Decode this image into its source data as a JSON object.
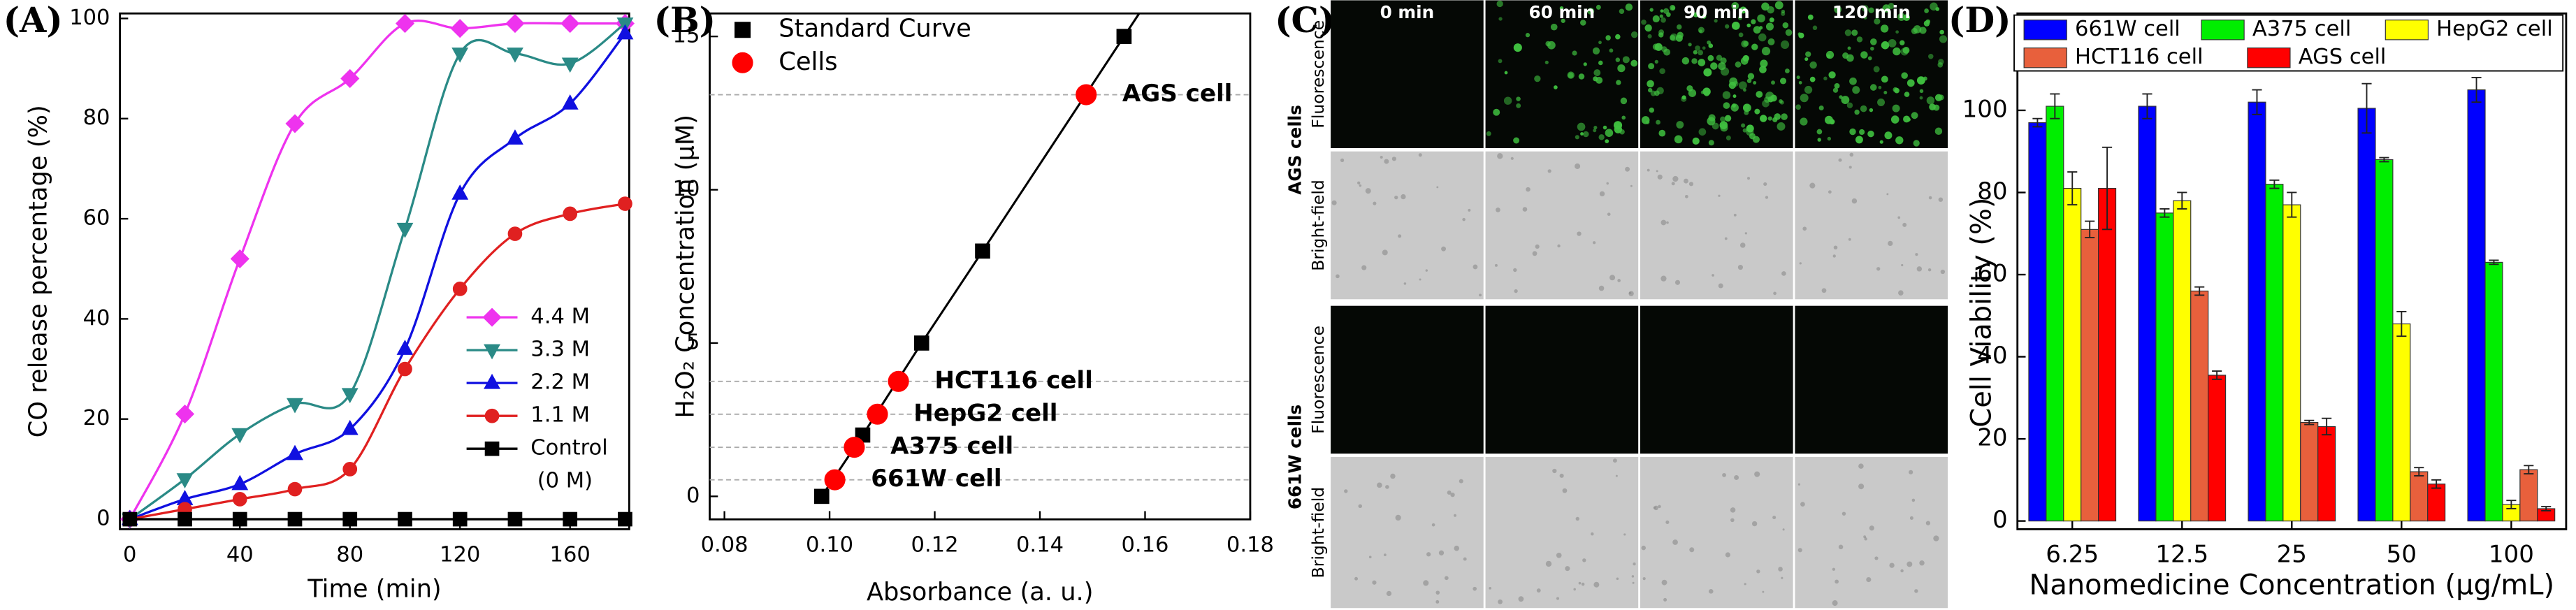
{
  "chart_data": [
    {
      "type": "line",
      "panel_label": "(A)",
      "x_label": "Time (min)",
      "y_label": "CO release percentage (%)",
      "x": [
        0,
        20,
        40,
        60,
        80,
        100,
        120,
        140,
        160,
        180
      ],
      "series": [
        {
          "name": "4.4 M",
          "color": "#ee33ee",
          "marker": "diamond",
          "values": [
            0,
            21,
            52,
            79,
            88,
            99,
            98,
            99,
            99,
            99
          ]
        },
        {
          "name": "3.3 M",
          "color": "#2a8a86",
          "marker": "triangle-down",
          "values": [
            0,
            8,
            17,
            23,
            25,
            58,
            93,
            93,
            91,
            99
          ]
        },
        {
          "name": "2.2 M",
          "color": "#1010e0",
          "marker": "triangle",
          "values": [
            0,
            4,
            7,
            13,
            18,
            34,
            65,
            76,
            83,
            97
          ]
        },
        {
          "name": "1.1 M",
          "color": "#e02020",
          "marker": "circle",
          "values": [
            0,
            2,
            4,
            6,
            10,
            30,
            46,
            57,
            61,
            63
          ]
        },
        {
          "name": "Control",
          "legend_note": "(0 M)",
          "color": "#000000",
          "marker": "square",
          "values": [
            0,
            0,
            0,
            0,
            0,
            0,
            0,
            0,
            0,
            0
          ]
        }
      ],
      "xlim": [
        -3.6,
        181.5
      ],
      "xticks": [
        0,
        40,
        80,
        120,
        160
      ],
      "ylim": [
        -2,
        101
      ],
      "yticks": [
        0,
        20,
        40,
        60,
        80,
        100
      ],
      "smooth": true,
      "legend": "lower right"
    },
    {
      "type": "scatter",
      "panel_label": "(B)",
      "x_label": "Absorbance (a. u.)",
      "y_label": "H₂O₂ Concentration (μM)",
      "series": [
        {
          "name": "Standard Curve",
          "color": "#000000",
          "marker": "square",
          "line": true,
          "x": [
            0.0985,
            0.1063,
            0.1175,
            0.1291,
            0.156
          ],
          "values": [
            0,
            2,
            5,
            8,
            15
          ]
        },
        {
          "name": "Cells",
          "color": "#ff0000",
          "marker": "circle",
          "guide_lines": true,
          "x": [
            0.101,
            0.1047,
            0.1091,
            0.1131,
            0.1488
          ],
          "values": [
            0.54,
            1.6,
            2.68,
            3.75,
            13.1
          ],
          "point_labels": [
            "661W cell",
            "A375 cell",
            "HepG2 cell",
            "HCT116 cell",
            "AGS cell"
          ]
        }
      ],
      "xlim": [
        0.0772,
        0.18
      ],
      "xticks": [
        0.08,
        {
          "value": 0.1,
          "label": "0.10"
        },
        0.12,
        0.14,
        0.16,
        0.18
      ],
      "ylim": [
        -0.75,
        15.75
      ],
      "yticks": [
        0,
        5,
        10,
        15
      ],
      "legend": "upper left"
    },
    {
      "type": "bar",
      "panel_label": "(D)",
      "x_label": "Nanomedicine Concentration (μg/mL)",
      "y_label": "Cell Viability (%)",
      "categories": [
        "6.25",
        "12.5",
        "25",
        "50",
        "100"
      ],
      "series": [
        {
          "name": "661W cell",
          "color": "#0000ff",
          "values": [
            97,
            101,
            102,
            100.5,
            105
          ],
          "errors": [
            1,
            3,
            3,
            6,
            3
          ]
        },
        {
          "name": "A375 cell",
          "color": "#00ee00",
          "values": [
            101,
            75,
            82,
            88,
            63
          ],
          "errors": [
            3,
            1,
            1,
            0.5,
            0.5
          ]
        },
        {
          "name": "HepG2 cell",
          "color": "#ffff00",
          "values": [
            81,
            78,
            77,
            48,
            4
          ],
          "errors": [
            4,
            2,
            3,
            3,
            1
          ]
        },
        {
          "name": "HCT116 cell",
          "color": "#e8603c",
          "values": [
            71,
            56,
            24,
            12,
            12.5
          ],
          "errors": [
            2,
            1,
            0.5,
            1,
            1
          ]
        },
        {
          "name": "AGS cell",
          "color": "#ff0000",
          "values": [
            81,
            35.5,
            23,
            9,
            3
          ],
          "errors": [
            10,
            1,
            2,
            1,
            0.5
          ]
        }
      ],
      "ylim": [
        -2,
        123.6
      ],
      "yticks": [
        0,
        20,
        40,
        60,
        80,
        100
      ],
      "legend": "top"
    }
  ],
  "image_panel": {
    "panel_label": "(C)",
    "columns": [
      "0 min",
      "60 min",
      "90 min",
      "120 min"
    ],
    "groups": [
      {
        "label": "AGS cells",
        "rows": [
          "Fluorescence",
          "Bright-field"
        ]
      },
      {
        "label": "661W cells",
        "rows": [
          "Fluorescence",
          "Bright-field"
        ]
      }
    ]
  }
}
